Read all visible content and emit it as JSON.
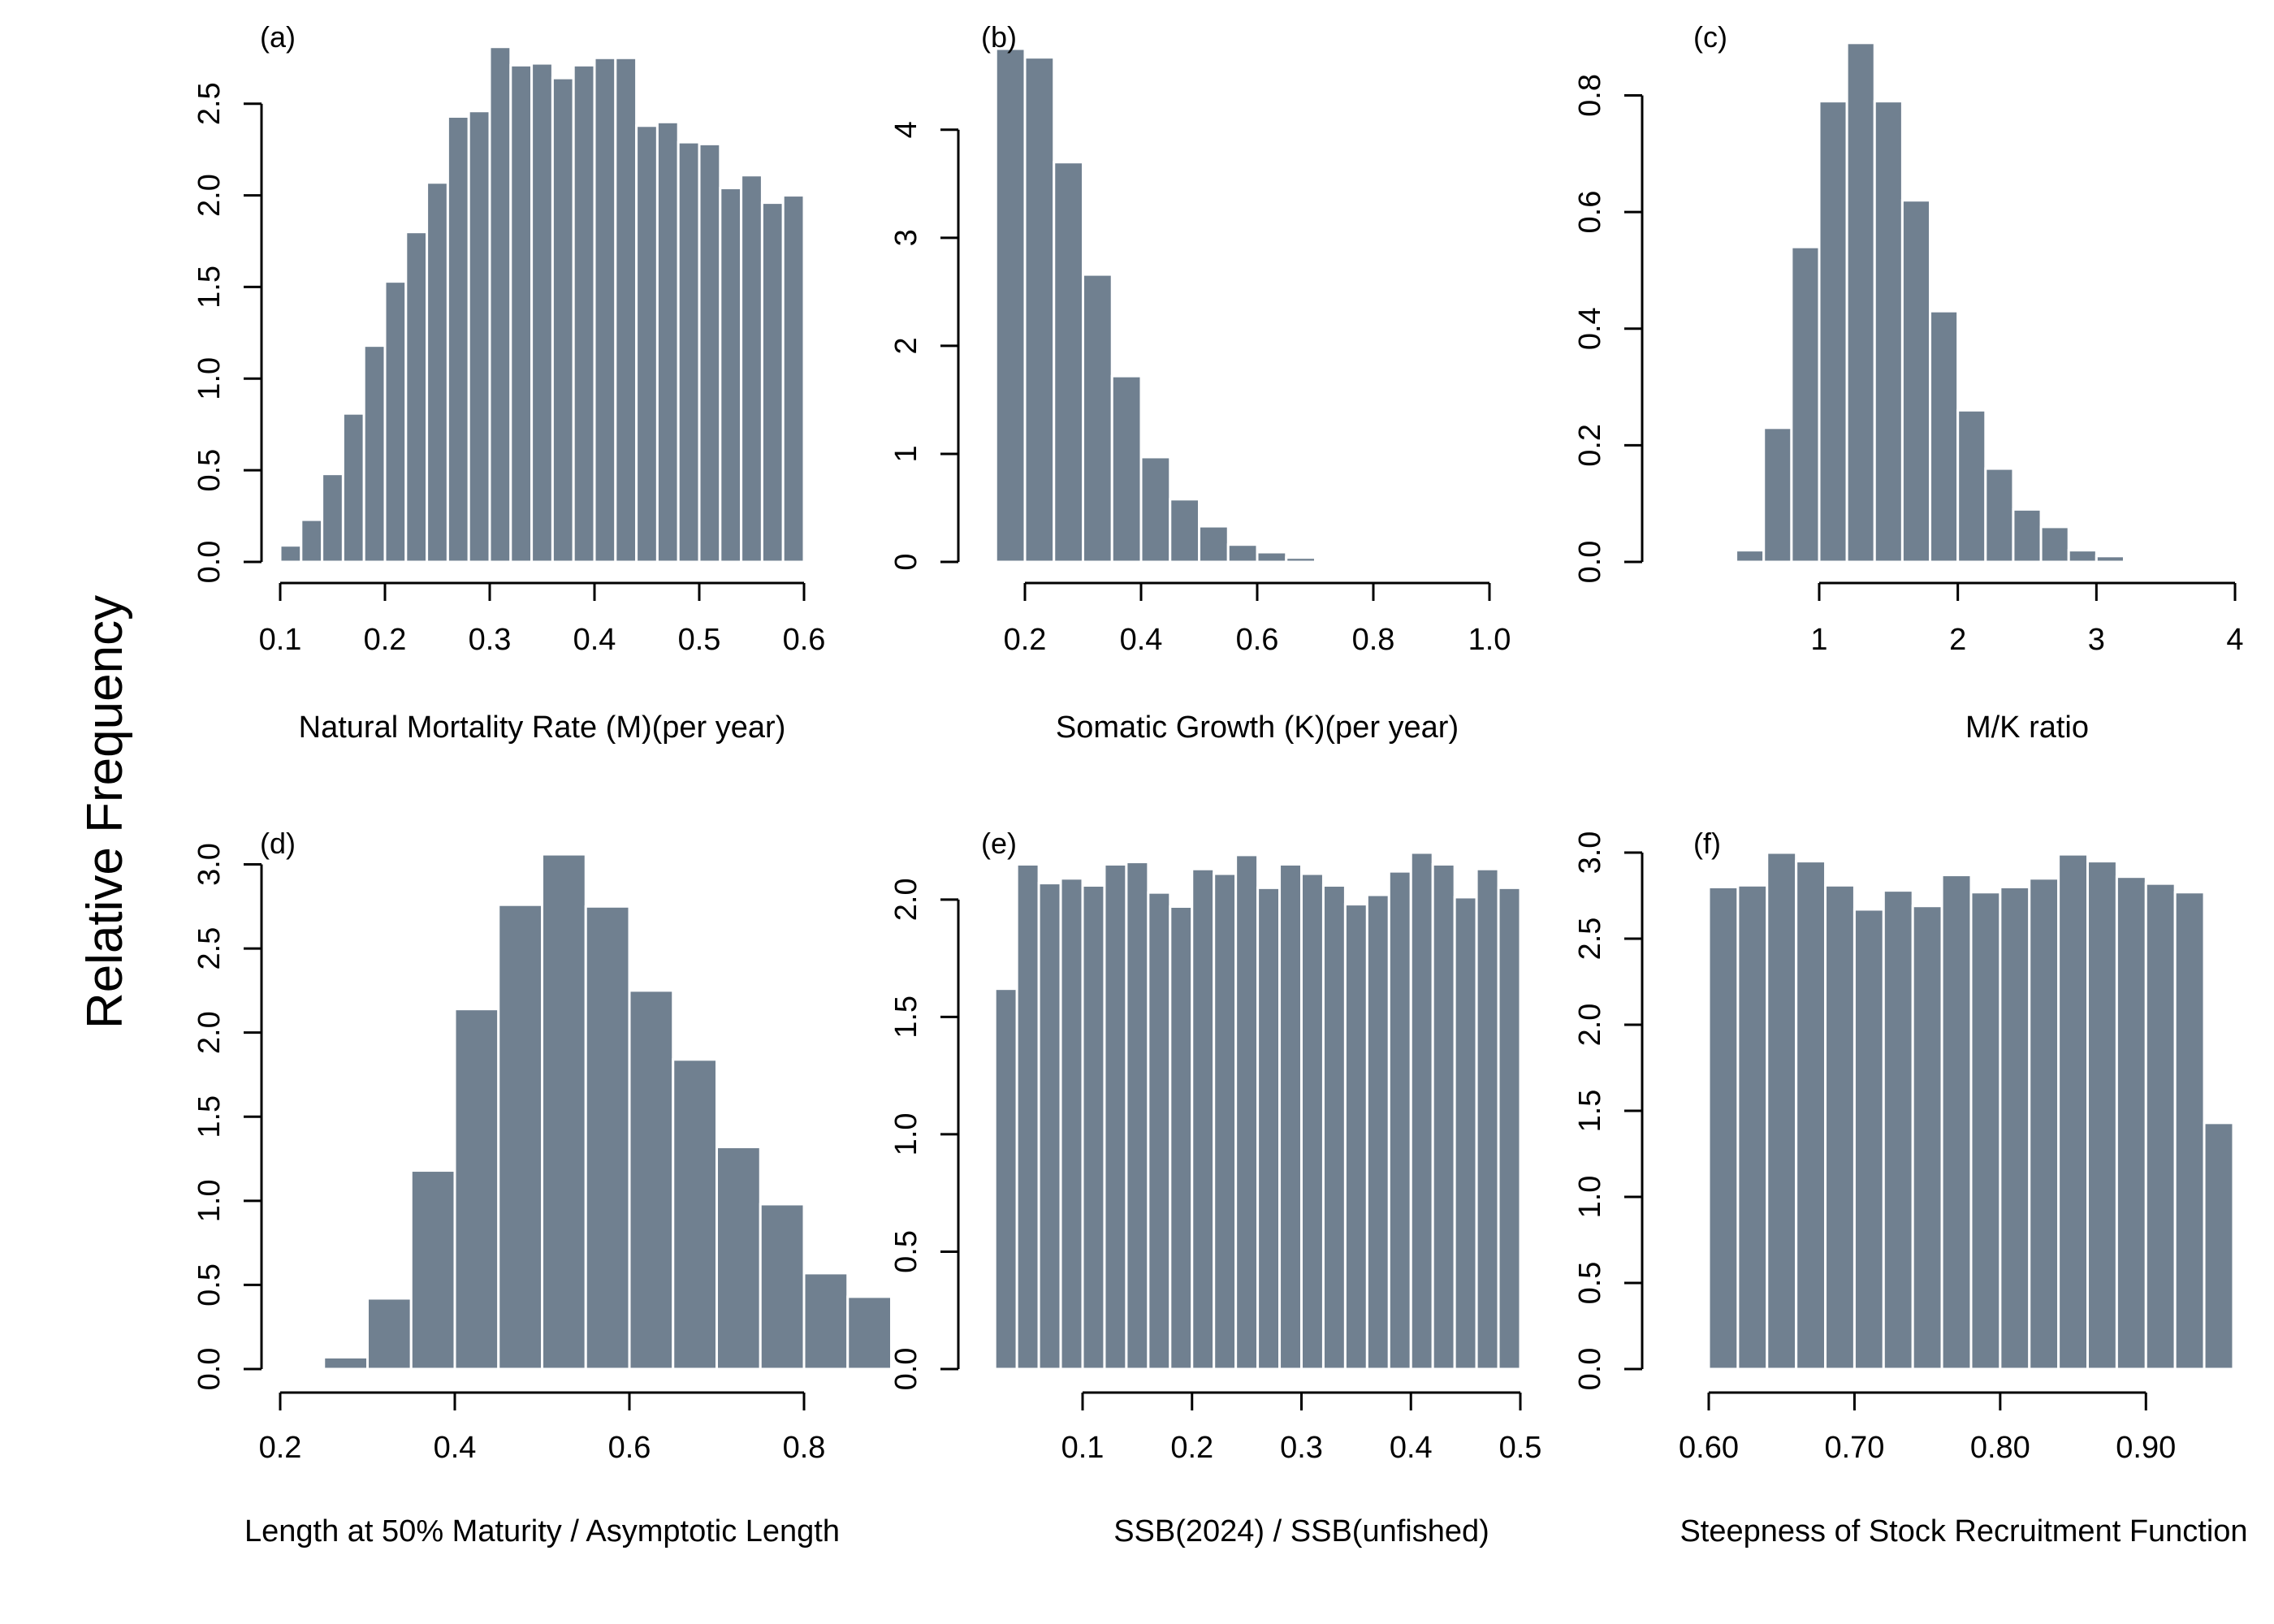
{
  "figure": {
    "ylabel": "Relative Frequency",
    "bar_color": "#708090",
    "background": "#ffffff"
  },
  "chart_data": [
    {
      "panel": "(a)",
      "type": "bar",
      "xlabel": "Natural Mortality Rate (M)(per year)",
      "xlim": [
        0.1,
        0.6
      ],
      "xticks": [
        "0.1",
        "0.2",
        "0.3",
        "0.4",
        "0.5",
        "0.6"
      ],
      "ylim": [
        0,
        2.8
      ],
      "yticks": [
        "0.0",
        "0.5",
        "1.0",
        "1.5",
        "2.0",
        "2.5"
      ],
      "bin_start": 0.1,
      "bin_width": 0.02,
      "values": [
        0.09,
        0.23,
        0.48,
        0.81,
        1.18,
        1.53,
        1.8,
        2.07,
        2.43,
        2.46,
        2.81,
        2.71,
        2.72,
        2.64,
        2.71,
        2.75,
        2.75,
        2.38,
        2.4,
        2.29,
        2.28,
        2.04,
        2.11,
        1.96,
        2.0
      ]
    },
    {
      "panel": "(b)",
      "type": "bar",
      "xlabel": "Somatic Growth (K)(per year)",
      "xlim": [
        0.2,
        1.0
      ],
      "xticks": [
        "0.2",
        "0.4",
        "0.6",
        "0.8",
        "1.0"
      ],
      "ylim": [
        0,
        4.75
      ],
      "yticks": [
        "0",
        "1",
        "2",
        "3",
        "4"
      ],
      "bin_start": 0.15,
      "bin_width": 0.05,
      "values": [
        4.75,
        4.67,
        3.7,
        2.66,
        1.72,
        0.97,
        0.58,
        0.33,
        0.16,
        0.09,
        0.04,
        0.01
      ]
    },
    {
      "panel": "(c)",
      "type": "bar",
      "xlabel": "M/K ratio",
      "xlim": [
        1,
        4
      ],
      "xticks": [
        "1",
        "2",
        "3",
        "4"
      ],
      "ylim": [
        0,
        0.88
      ],
      "yticks": [
        "0.0",
        "0.2",
        "0.4",
        "0.6",
        "0.8"
      ],
      "bin_start": 0.4,
      "bin_width": 0.2,
      "values": [
        0.02,
        0.23,
        0.54,
        0.79,
        0.89,
        0.79,
        0.62,
        0.43,
        0.26,
        0.16,
        0.09,
        0.06,
        0.02,
        0.01
      ]
    },
    {
      "panel": "(d)",
      "type": "bar",
      "xlabel": "Length at 50% Maturity / Asymptotic Length",
      "xlim": [
        0.2,
        0.8
      ],
      "xticks": [
        "0.2",
        "0.4",
        "0.6",
        "0.8"
      ],
      "ylim": [
        0,
        3.07
      ],
      "yticks": [
        "0.0",
        "0.5",
        "1.0",
        "1.5",
        "2.0",
        "2.5",
        "3.0"
      ],
      "bin_start": 0.25,
      "bin_width": 0.05,
      "values": [
        0.07,
        0.42,
        1.18,
        2.14,
        2.76,
        3.06,
        2.75,
        2.25,
        1.84,
        1.32,
        0.98,
        0.57,
        0.43
      ]
    },
    {
      "panel": "(e)",
      "type": "bar",
      "xlabel": "SSB(2024) / SSB(unfished)",
      "xlim": [
        0.1,
        0.5
      ],
      "xticks": [
        "0.1",
        "0.2",
        "0.3",
        "0.4",
        "0.5"
      ],
      "ylim": [
        0,
        2.2
      ],
      "yticks": [
        "0.0",
        "0.5",
        "1.0",
        "1.5",
        "2.0"
      ],
      "bin_start": 0.02,
      "bin_width": 0.02,
      "values": [
        1.62,
        2.15,
        2.07,
        2.09,
        2.06,
        2.15,
        2.16,
        2.03,
        1.97,
        2.13,
        2.11,
        2.19,
        2.05,
        2.15,
        2.11,
        2.06,
        1.98,
        2.02,
        2.12,
        2.2,
        2.15,
        2.01,
        2.13,
        2.05
      ]
    },
    {
      "panel": "(f)",
      "type": "bar",
      "xlabel": "Steepness of Stock Recruitment Function",
      "xlim": [
        0.6,
        0.95
      ],
      "xticks": [
        "0.60",
        "0.70",
        "0.80",
        "0.90"
      ],
      "ylim": [
        0,
        3.0
      ],
      "yticks": [
        "0.0",
        "0.5",
        "1.0",
        "1.5",
        "2.0",
        "2.5",
        "3.0"
      ],
      "bin_start": 0.6,
      "bin_width": 0.02,
      "values": [
        2.8,
        2.81,
        3.0,
        2.95,
        2.81,
        2.67,
        2.78,
        2.69,
        2.87,
        2.77,
        2.8,
        2.85,
        2.99,
        2.95,
        2.86,
        2.82,
        2.77,
        1.43
      ]
    }
  ]
}
